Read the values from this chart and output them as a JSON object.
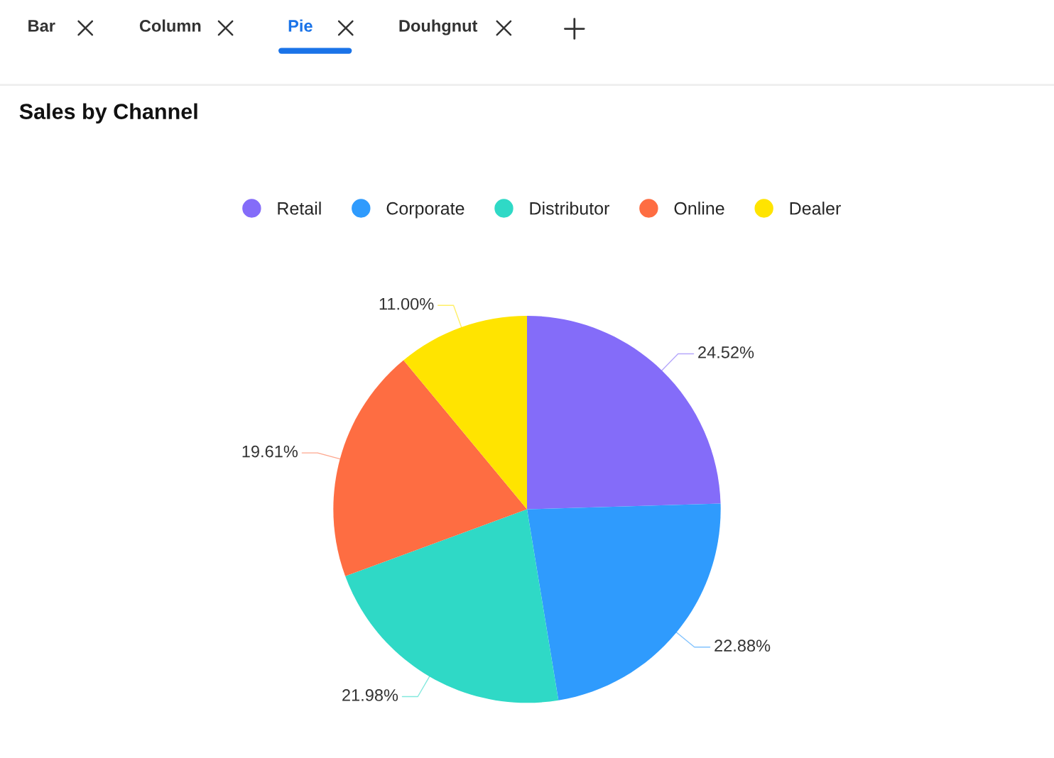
{
  "chart_data": {
    "type": "pie",
    "title": "Sales by Channel",
    "categories": [
      "Retail",
      "Corporate",
      "Distributor",
      "Online",
      "Dealer"
    ],
    "values": [
      24.52,
      22.88,
      21.98,
      19.61,
      11.0
    ],
    "value_labels": [
      "24.52%",
      "22.88%",
      "21.98%",
      "19.61%",
      "11.00%"
    ],
    "colors": [
      "#846cf9",
      "#2f9bfd",
      "#2fd9c6",
      "#fe6d42",
      "#ffe400"
    ],
    "legend": "top",
    "annotations": [
      "Bar",
      "Column",
      "Pie",
      "Douhgnut"
    ]
  }
}
